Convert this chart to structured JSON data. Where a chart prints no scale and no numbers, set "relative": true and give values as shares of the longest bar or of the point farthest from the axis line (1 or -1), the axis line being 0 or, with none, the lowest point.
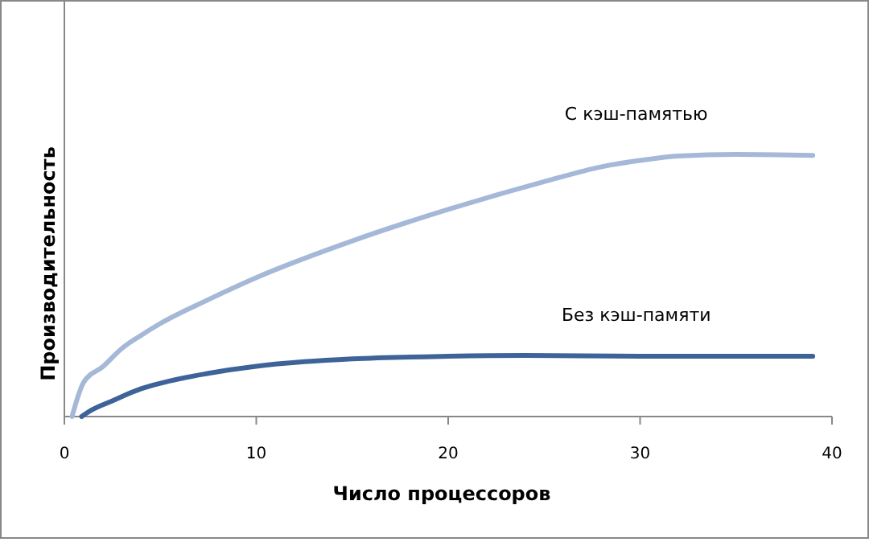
{
  "chart_data": {
    "type": "line",
    "relative": true,
    "xlabel": "Число процессоров",
    "ylabel": "Производительность",
    "xlim": [
      0,
      40
    ],
    "xticks": [
      0,
      10,
      20,
      30,
      40
    ],
    "grid": false,
    "marker": "none",
    "line_style": "solid",
    "series": [
      {
        "name": "С кэш-памятью",
        "color": "#a5b8d8",
        "x": [
          0.4,
          1,
          2,
          3,
          4,
          5,
          7.5,
          10,
          15,
          20,
          25,
          28,
          30,
          32,
          35,
          39
        ],
        "values": [
          0,
          0.13,
          0.19,
          0.26,
          0.31,
          0.355,
          0.446,
          0.53,
          0.67,
          0.79,
          0.896,
          0.953,
          0.977,
          0.994,
          1,
          0.996
        ]
      },
      {
        "name": "Без кэш-памяти",
        "color": "#3d6399",
        "x": [
          0.9,
          1.3,
          2.5,
          4,
          5,
          7.5,
          10,
          12.5,
          15,
          20,
          24,
          30,
          39
        ],
        "values": [
          0,
          0.02,
          0.06,
          0.106,
          0.127,
          0.165,
          0.192,
          0.209,
          0.22,
          0.23,
          0.233,
          0.23,
          0.23
        ]
      }
    ]
  }
}
